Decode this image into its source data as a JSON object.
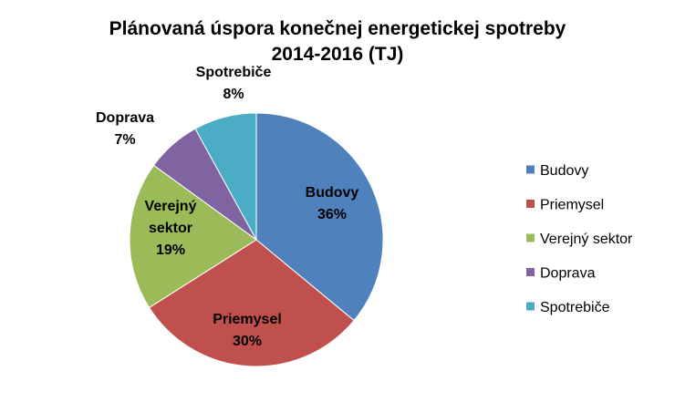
{
  "chart_data": {
    "type": "pie",
    "title": "Plánovaná úspora konečnej energetickej spotreby 2014-2016 (TJ)",
    "title_lines": [
      "Plánovaná úspora konečnej energetickej spotreby",
      "2014-2016 (TJ)"
    ],
    "legend_position": "right",
    "slices": [
      {
        "name": "Budovy",
        "label_lines": [
          "Budovy"
        ],
        "percent_label": "36%",
        "value": 36,
        "color": "#4F81BD",
        "label_placement": "inside"
      },
      {
        "name": "Priemysel",
        "label_lines": [
          "Priemysel"
        ],
        "percent_label": "30%",
        "value": 30,
        "color": "#C0504D",
        "label_placement": "inside"
      },
      {
        "name": "Verejný sektor",
        "label_lines": [
          "Verejný",
          "sektor"
        ],
        "percent_label": "19%",
        "value": 19,
        "color": "#9BBB59",
        "label_placement": "inside"
      },
      {
        "name": "Doprava",
        "label_lines": [
          "Doprava"
        ],
        "percent_label": "7%",
        "value": 7,
        "color": "#8064A2",
        "label_placement": "outside"
      },
      {
        "name": "Spotrebiče",
        "label_lines": [
          "Spotrebiče"
        ],
        "percent_label": "8%",
        "value": 8,
        "color": "#4BACC6",
        "label_placement": "outside"
      }
    ]
  }
}
